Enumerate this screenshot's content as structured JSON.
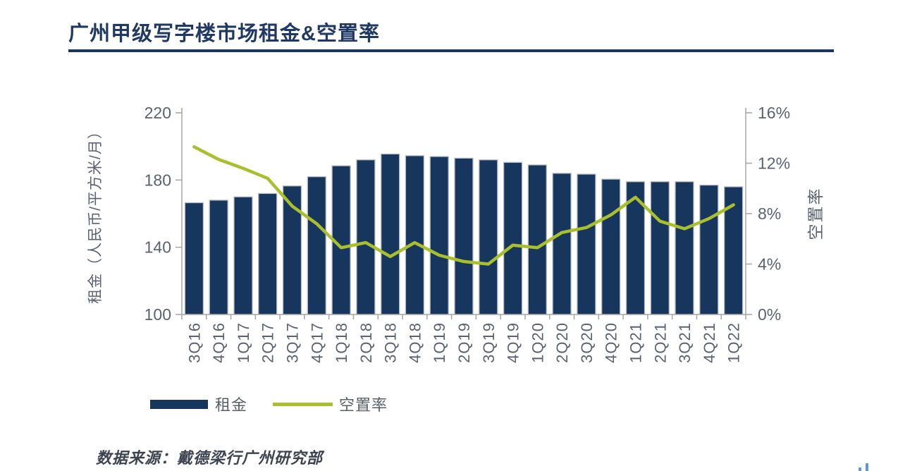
{
  "header": {
    "title": "广州甲级写字楼市场租金&空置率"
  },
  "colors": {
    "bar": "#17365d",
    "bar_border": "#b9bcc2",
    "line": "#a9bf2d",
    "title": "#1f3864",
    "axis_line": "#a6a6a6",
    "axis_text": "#5a6270"
  },
  "chart_data": {
    "type": "bar+line",
    "title": "广州甲级写字楼市场租金&空置率",
    "categories": [
      "3Q16",
      "4Q16",
      "1Q17",
      "2Q17",
      "3Q17",
      "4Q17",
      "1Q18",
      "2Q18",
      "3Q18",
      "4Q18",
      "1Q19",
      "2Q19",
      "3Q19",
      "4Q19",
      "1Q20",
      "2Q20",
      "3Q20",
      "4Q20",
      "1Q21",
      "2Q21",
      "3Q21",
      "4Q21",
      "1Q22"
    ],
    "series": [
      {
        "name": "租金",
        "type": "bar",
        "axis": "left",
        "values": [
          166.5,
          168,
          170,
          172,
          176.5,
          182,
          188.5,
          192,
          195.5,
          194.5,
          194,
          193,
          192,
          190.5,
          189,
          184,
          183.5,
          180.5,
          179,
          179,
          179,
          177,
          176
        ]
      },
      {
        "name": "空置率",
        "type": "line",
        "axis": "right",
        "values": [
          13.3,
          12.3,
          11.6,
          10.8,
          8.6,
          7.2,
          5.3,
          5.7,
          4.6,
          5.7,
          4.7,
          4.2,
          4.0,
          5.5,
          5.3,
          6.5,
          6.9,
          7.9,
          9.3,
          7.4,
          6.8,
          7.6,
          8.7
        ]
      }
    ],
    "left_axis": {
      "title": "租金（人民币/平方米/月）",
      "min": 100,
      "max": 220,
      "tick_values": [
        100,
        140,
        180,
        220
      ],
      "tick_labels": [
        "100",
        "140",
        "180",
        "220"
      ]
    },
    "right_axis": {
      "title": "空置率",
      "min": 0,
      "max": 16,
      "tick_values": [
        0,
        4,
        8,
        12,
        16
      ],
      "tick_labels": [
        "0%",
        "4%",
        "8%",
        "12%",
        "16%"
      ]
    },
    "grid": false,
    "legend_position": "bottom"
  },
  "footer": {
    "source": "数据来源：戴德梁行广州研究部"
  }
}
